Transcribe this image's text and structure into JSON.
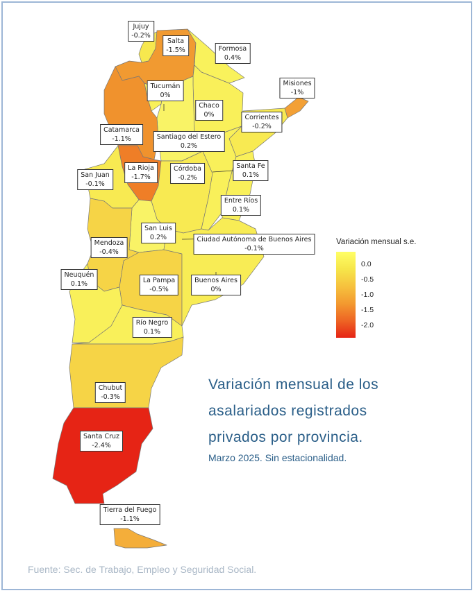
{
  "title_lines": [
    "Variación mensual de los",
    "asalariados registrados",
    "privados por provincia."
  ],
  "subtitle": "Marzo 2025. Sin estacionalidad.",
  "source": "Fuente: Sec. de Trabajo, Empleo y Seguridad Social.",
  "legend": {
    "title": "Variación mensual s.e.",
    "ticks": [
      "0.0",
      "-0.5",
      "-1.0",
      "-1.5",
      "-2.0"
    ],
    "colors": [
      "#ffff66",
      "#f6c23e",
      "#ee6524",
      "#e62415"
    ]
  },
  "provinces": [
    {
      "name": "Jujuy",
      "value": "-0.2%"
    },
    {
      "name": "Salta",
      "value": "-1.5%"
    },
    {
      "name": "Formosa",
      "value": "0.4%"
    },
    {
      "name": "Misiones",
      "value": "-1%"
    },
    {
      "name": "Tucumán",
      "value": "0%"
    },
    {
      "name": "Chaco",
      "value": "0%"
    },
    {
      "name": "Corrientes",
      "value": "-0.2%"
    },
    {
      "name": "Catamarca",
      "value": "-1.1%"
    },
    {
      "name": "Santiago del Estero",
      "value": "0.2%"
    },
    {
      "name": "San Juan",
      "value": "-0.1%"
    },
    {
      "name": "La Rioja",
      "value": "-1.7%"
    },
    {
      "name": "Córdoba",
      "value": "-0.2%"
    },
    {
      "name": "Santa Fe",
      "value": "0.1%"
    },
    {
      "name": "Entre Ríos",
      "value": "0.1%"
    },
    {
      "name": "San Luis",
      "value": "0.2%"
    },
    {
      "name": "Mendoza",
      "value": "-0.4%"
    },
    {
      "name": "Ciudad Autónoma de Buenos Aires",
      "value": "-0.1%"
    },
    {
      "name": "Neuquén",
      "value": "0.1%"
    },
    {
      "name": "La Pampa",
      "value": "-0.5%"
    },
    {
      "name": "Buenos Aires",
      "value": "0%"
    },
    {
      "name": "Río Negro",
      "value": "0.1%"
    },
    {
      "name": "Chubut",
      "value": "-0.3%"
    },
    {
      "name": "Santa Cruz",
      "value": "-2.4%"
    },
    {
      "name": "Tierra del Fuego",
      "value": "-1.1%"
    }
  ]
}
